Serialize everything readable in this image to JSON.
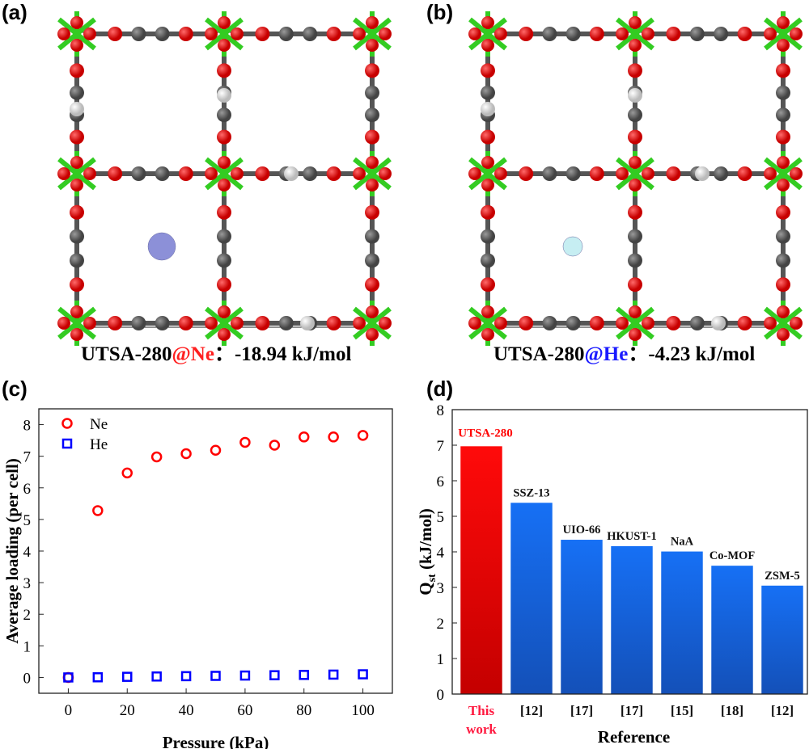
{
  "panels": {
    "a": {
      "label": "(a)",
      "caption_prefix": "UTSA-280",
      "caption_guest": "@Ne",
      "caption_sep": "：",
      "caption_energy": "-18.94 kJ/mol",
      "guest_color": "#8c90d8",
      "guest_text_color": "#ff2020"
    },
    "b": {
      "label": "(b)",
      "caption_prefix": "UTSA-280",
      "caption_guest": "@He",
      "caption_sep": "：",
      "caption_energy": "-4.23 kJ/mol",
      "guest_color": "#c6eef2",
      "guest_text_color": "#1a1aff"
    },
    "c": {
      "label": "(c)"
    },
    "d": {
      "label": "(d)"
    }
  },
  "chart_data": [
    {
      "type": "scatter",
      "xlabel": "Pressure (kPa)",
      "ylabel": "Average loading (per cell)",
      "xlim": [
        -10,
        110
      ],
      "ylim": [
        -0.5,
        8.5
      ],
      "xticks": [
        "0",
        "20",
        "40",
        "60",
        "80",
        "100"
      ],
      "yticks": [
        "0",
        "1",
        "2",
        "3",
        "4",
        "5",
        "6",
        "7",
        "8"
      ],
      "legend_position": "top-left",
      "x": [
        0,
        10,
        20,
        30,
        40,
        50,
        60,
        70,
        80,
        90,
        100
      ],
      "series": [
        {
          "name": "Ne",
          "marker": "circle",
          "color": "#ff0000",
          "values": [
            0,
            5.28,
            6.47,
            6.98,
            7.08,
            7.19,
            7.44,
            7.35,
            7.61,
            7.61,
            7.66
          ]
        },
        {
          "name": "He",
          "marker": "square",
          "color": "#0000ff",
          "values": [
            0,
            0.005,
            0.02,
            0.03,
            0.04,
            0.05,
            0.06,
            0.07,
            0.08,
            0.09,
            0.1
          ]
        }
      ]
    },
    {
      "type": "bar",
      "xlabel": "Reference",
      "ylabel": "Q",
      "ylabel_sub": "st",
      "ylabel_unit": " (kJ/mol)",
      "ylim": [
        0,
        8
      ],
      "yticks": [
        "0",
        "1",
        "2",
        "3",
        "4",
        "5",
        "6",
        "7",
        "8"
      ],
      "categories": [
        "This work",
        "[12]",
        "[17]",
        "[17]",
        "[15]",
        "[18]",
        "[12]"
      ],
      "category_lines": [
        [
          "This",
          "work"
        ],
        [
          "[12]"
        ],
        [
          "[17]"
        ],
        [
          "[17]"
        ],
        [
          "[15]"
        ],
        [
          "[18]"
        ],
        [
          "[12]"
        ]
      ],
      "bar_labels": [
        "UTSA-280",
        "SSZ-13",
        "UIO-66",
        "HKUST-1",
        "NaA",
        "Co-MOF",
        "ZSM-5"
      ],
      "values": [
        6.97,
        5.38,
        4.34,
        4.16,
        4.01,
        3.61,
        3.05
      ],
      "highlight_color": "#ff0000",
      "bar_color": "#1466ee"
    }
  ]
}
